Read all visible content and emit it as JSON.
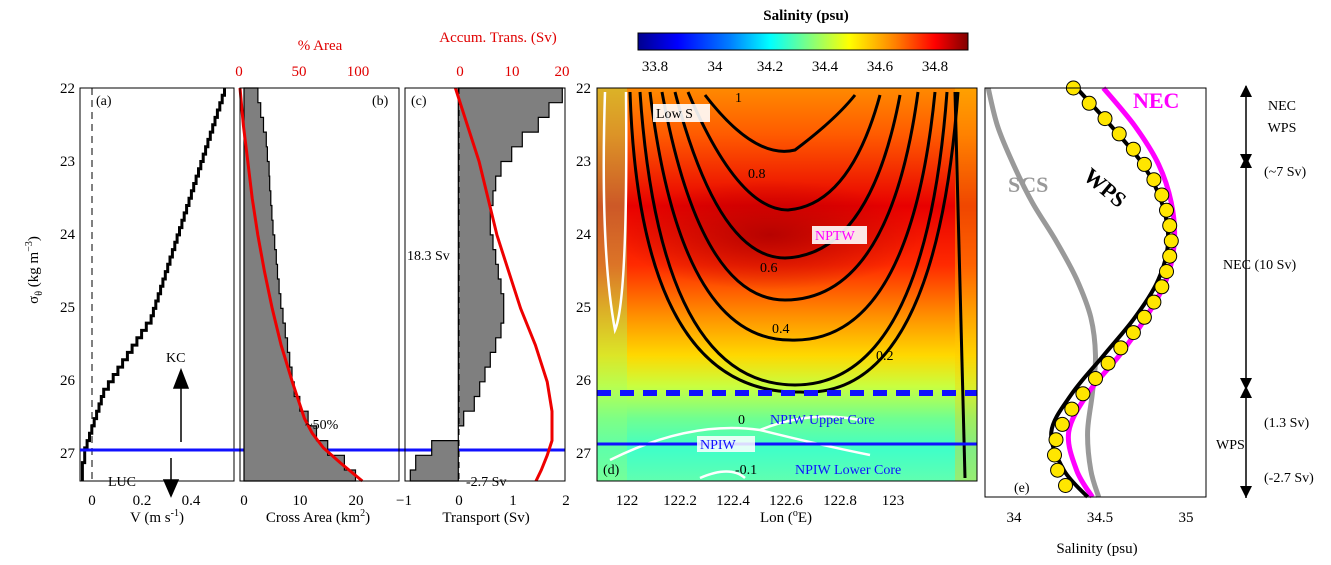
{
  "figure": {
    "panels": [
      {
        "id": "a",
        "label": "(a)",
        "xlabel": "V (m s",
        "xlabel_sup": "-1",
        "xlabel_end": ")",
        "ylabel": "σ",
        "ylabel_sub": "θ",
        "ylabel_rest": " (kg m",
        "ylabel_sup": "−3",
        "ylabel_end": ")",
        "annotations": {
          "kc": "KC",
          "luc": "LUC"
        }
      },
      {
        "id": "b",
        "label": "(b)",
        "xlabel": "Cross Area (km",
        "xlabel_sup": "2",
        "xlabel_end": ")",
        "top_xlabel": "% Area",
        "annotation": "~50%"
      },
      {
        "id": "c",
        "label": "(c)",
        "xlabel": "Transport (Sv)",
        "top_xlabel": "Accum. Trans. (Sv)",
        "annotations": {
          "total": "18.3 Sv",
          "luc": "-2.7 Sv"
        }
      },
      {
        "id": "d",
        "label": "(d)",
        "xlabel": "Lon (",
        "xlabel_sup": "o",
        "xlabel_end": "E)",
        "colorbar_label": "Salinity (psu)",
        "annotations": {
          "low_s": "Low S",
          "nptw": "NPTW",
          "npiw": "NPIW",
          "upper": "NPIW Upper Core",
          "lower": "NPIW Lower Core"
        }
      },
      {
        "id": "e",
        "label": "(e)",
        "xlabel": "Salinity (psu)",
        "curve_labels": {
          "nec": "NEC",
          "wps": "WPS",
          "scs": "SCS"
        }
      }
    ],
    "right_annotations": {
      "top1": "NEC",
      "top2": "WPS",
      "t7": "(~7 Sv)",
      "mid": "NEC  (10 Sv)",
      "t13": "(1.3 Sv)",
      "wps": "WPS",
      "t27": "(-2.7 Sv)"
    }
  },
  "chart_data": [
    {
      "type": "line",
      "panel": "a",
      "y_axis": {
        "label": "σθ (kg m−3)",
        "ticks": [
          22,
          23,
          24,
          25,
          26,
          27
        ],
        "ylim": [
          22,
          27.35
        ],
        "inverted": true
      },
      "x_axis": {
        "label": "V (m s−1)",
        "ticks": [
          0,
          0.2,
          0.4
        ],
        "xlim": [
          -0.05,
          0.6
        ]
      },
      "series": [
        {
          "step": "stairs",
          "y": [
            22.0,
            22.1,
            22.2,
            22.3,
            22.4,
            22.5,
            22.6,
            22.7,
            22.8,
            22.9,
            23.0,
            23.1,
            23.2,
            23.3,
            23.4,
            23.5,
            23.6,
            23.7,
            23.8,
            23.9,
            24.0,
            24.1,
            24.2,
            24.3,
            24.4,
            24.5,
            24.6,
            24.7,
            24.8,
            24.9,
            25.0,
            25.1,
            25.2,
            25.3,
            25.4,
            25.5,
            25.6,
            25.7,
            25.8,
            25.9,
            26.0,
            26.1,
            26.2,
            26.3,
            26.4,
            26.5,
            26.6,
            26.7,
            26.8,
            26.9,
            27.0,
            27.1,
            27.2,
            27.35
          ],
          "values": [
            0.56,
            0.55,
            0.54,
            0.53,
            0.52,
            0.51,
            0.5,
            0.49,
            0.48,
            0.47,
            0.46,
            0.45,
            0.44,
            0.43,
            0.42,
            0.41,
            0.4,
            0.39,
            0.38,
            0.37,
            0.36,
            0.35,
            0.34,
            0.33,
            0.32,
            0.31,
            0.3,
            0.29,
            0.28,
            0.27,
            0.26,
            0.25,
            0.23,
            0.21,
            0.19,
            0.17,
            0.15,
            0.13,
            0.11,
            0.09,
            0.07,
            0.05,
            0.04,
            0.03,
            0.02,
            0.01,
            0.0,
            -0.01,
            -0.02,
            -0.03,
            -0.03,
            -0.04,
            -0.04,
            -0.04
          ]
        }
      ],
      "reference_lines": {
        "x_dashed": 0,
        "y_blue": 26.8
      }
    },
    {
      "type": "area",
      "panel": "b",
      "x_axis": {
        "label": "Cross Area (km2)",
        "ticks": [
          0,
          10,
          20
        ],
        "xlim": [
          0,
          26
        ]
      },
      "x_top_axis": {
        "label": "% Area",
        "ticks": [
          0,
          50,
          100
        ],
        "xlim": [
          0,
          143
        ]
      },
      "series": [
        {
          "kind": "stairs_fill",
          "y": [
            22.0,
            22.2,
            22.4,
            22.6,
            22.8,
            23.0,
            23.2,
            23.4,
            23.6,
            23.8,
            24.0,
            24.2,
            24.4,
            24.6,
            24.8,
            25.0,
            25.2,
            25.4,
            25.6,
            25.8,
            26.0,
            26.2,
            26.4,
            26.6,
            26.8,
            27.0,
            27.2,
            27.35
          ],
          "values": [
            2.5,
            3.0,
            3.5,
            4.0,
            4.2,
            4.5,
            4.6,
            4.8,
            5.0,
            5.2,
            5.5,
            5.8,
            6.0,
            6.3,
            6.6,
            7.0,
            7.4,
            7.8,
            8.2,
            8.6,
            9.0,
            10.0,
            11.5,
            13.0,
            15.0,
            18.0,
            20.0,
            22.0
          ]
        },
        {
          "kind": "line_top_axis",
          "y": [
            22.0,
            22.5,
            23.0,
            23.5,
            24.0,
            24.5,
            25.0,
            25.5,
            26.0,
            26.5,
            26.7,
            26.9,
            27.1,
            27.35
          ],
          "values": [
            0,
            3,
            7,
            11,
            16,
            22,
            29,
            37,
            47,
            58,
            65,
            75,
            90,
            110
          ]
        }
      ]
    },
    {
      "type": "area",
      "panel": "c",
      "x_axis": {
        "label": "Transport (Sv)",
        "ticks": [
          -1,
          0,
          1,
          2
        ],
        "xlim": [
          -1,
          2
        ]
      },
      "x_top_axis": {
        "label": "Accum. Trans. (Sv)",
        "ticks": [
          0,
          10,
          20
        ],
        "xlim": [
          -6.5,
          20.5
        ]
      },
      "series": [
        {
          "kind": "stairs_fill",
          "y": [
            22.0,
            22.2,
            22.4,
            22.6,
            22.8,
            23.0,
            23.2,
            23.4,
            23.6,
            23.8,
            24.0,
            24.2,
            24.4,
            24.6,
            24.8,
            25.0,
            25.2,
            25.4,
            25.6,
            25.8,
            26.0,
            26.2,
            26.4,
            26.6,
            26.8,
            27.0,
            27.2,
            27.35
          ],
          "values": [
            1.95,
            1.7,
            1.5,
            1.2,
            1.0,
            0.8,
            0.7,
            0.65,
            0.6,
            0.6,
            0.65,
            0.7,
            0.75,
            0.8,
            0.85,
            0.85,
            0.8,
            0.7,
            0.6,
            0.5,
            0.4,
            0.3,
            0.1,
            0.0,
            -0.5,
            -0.8,
            -0.9,
            -0.9
          ]
        },
        {
          "kind": "line_top_axis",
          "y": [
            22.0,
            22.5,
            23.0,
            23.5,
            24.0,
            24.5,
            25.0,
            25.5,
            26.0,
            26.4,
            26.8,
            27.0,
            27.2,
            27.35
          ],
          "values": [
            2,
            4,
            6,
            7.5,
            9,
            11,
            13,
            15.5,
            17.5,
            18.3,
            18.3,
            17.5,
            16.5,
            15.6
          ]
        }
      ],
      "annotation_values": {
        "total": 18.3,
        "luc": -2.7
      }
    },
    {
      "type": "heatmap",
      "panel": "d",
      "x_axis": {
        "label": "Lon (°E)",
        "ticks": [
          122,
          122.2,
          122.4,
          122.6,
          122.8,
          123
        ],
        "xlim": [
          121.88,
          123.36
        ]
      },
      "y_axis": {
        "ticks": [
          22,
          23,
          24,
          25,
          26,
          27
        ],
        "ylim": [
          22,
          27.35
        ],
        "inverted": true
      },
      "colorbar": {
        "label": "Salinity (psu)",
        "ticks": [
          33.8,
          34,
          34.2,
          34.4,
          34.6,
          34.8
        ],
        "range": [
          33.75,
          34.95
        ],
        "colors": [
          "#00008f",
          "#0000ff",
          "#0080ff",
          "#00ffff",
          "#80ff80",
          "#ffff00",
          "#ff8000",
          "#ff0000",
          "#800000"
        ]
      },
      "contour_labels": [
        "1",
        "0.8",
        "0.6",
        "0.4",
        "0.2",
        "0",
        "-0.1"
      ],
      "reference_lines": {
        "dashed_blue_y": 26.0,
        "solid_blue_y": 26.7
      }
    },
    {
      "type": "line",
      "panel": "e",
      "x_axis": {
        "label": "Salinity (psu)",
        "ticks": [
          34,
          34.5,
          35
        ],
        "xlim": [
          33.8,
          35.2
        ]
      },
      "y_axis": {
        "ylim": [
          22,
          27.35
        ],
        "inverted": true
      },
      "series": [
        {
          "name": "NEC",
          "color": "#ff00ff",
          "y": [
            22,
            22.5,
            23,
            23.5,
            24,
            24.5,
            25,
            25.5,
            26,
            26.5,
            27,
            27.35
          ],
          "values": [
            34.55,
            34.75,
            34.9,
            34.98,
            35.0,
            34.95,
            34.82,
            34.65,
            34.45,
            34.33,
            34.38,
            34.48
          ]
        },
        {
          "name": "WPS",
          "color": "#000000",
          "y": [
            22,
            22.5,
            23,
            23.5,
            24,
            24.5,
            25,
            25.5,
            26,
            26.5,
            27,
            27.35
          ],
          "values": [
            34.38,
            34.6,
            34.8,
            34.92,
            34.96,
            34.9,
            34.75,
            34.55,
            34.35,
            34.22,
            34.3,
            34.45
          ]
        },
        {
          "name": "SCS",
          "color": "#999999",
          "y": [
            22,
            22.5,
            23,
            23.5,
            24,
            24.5,
            25,
            25.5,
            26,
            26.5,
            27,
            27.35
          ],
          "values": [
            33.82,
            33.88,
            33.98,
            34.1,
            34.25,
            34.38,
            34.47,
            34.5,
            34.48,
            34.45,
            34.47,
            34.52
          ]
        },
        {
          "name": "markers",
          "color": "#ffe600",
          "y": [
            22.0,
            22.2,
            22.4,
            22.6,
            22.8,
            23.0,
            23.2,
            23.4,
            23.6,
            23.8,
            24.0,
            24.2,
            24.4,
            24.6,
            24.8,
            25.0,
            25.2,
            25.4,
            25.6,
            25.8,
            26.0,
            26.2,
            26.4,
            26.6,
            26.8,
            27.0,
            27.2
          ],
          "values": [
            34.36,
            34.46,
            34.56,
            34.65,
            34.74,
            34.81,
            34.87,
            34.92,
            34.95,
            34.97,
            34.98,
            34.97,
            34.95,
            34.92,
            34.87,
            34.81,
            34.74,
            34.66,
            34.58,
            34.5,
            34.42,
            34.35,
            34.29,
            34.25,
            34.24,
            34.26,
            34.31
          ]
        }
      ]
    }
  ]
}
